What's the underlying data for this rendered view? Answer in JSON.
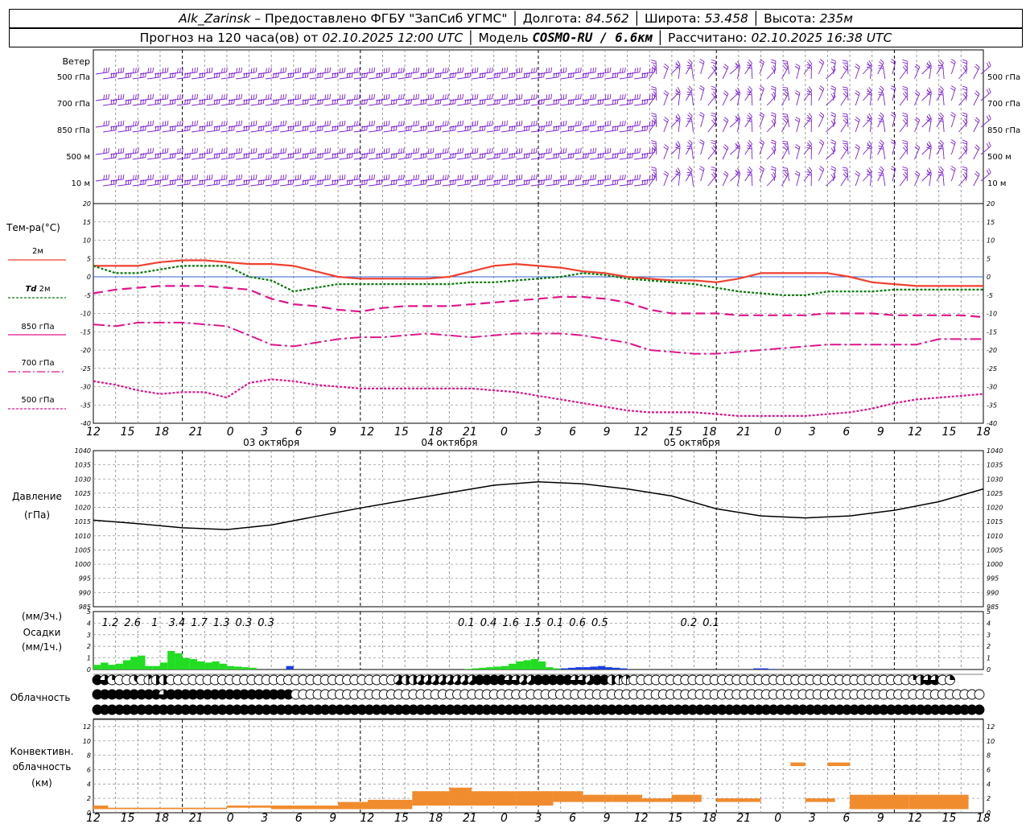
{
  "header": {
    "station": "Alk_Zarinsk",
    "provider": "– Предоставлено ФГБУ \"ЗапСиб УГМС\"",
    "lon_label": "Долгота:",
    "lon": "84.562",
    "lat_label": "Широта:",
    "lat": "53.458",
    "alt_label": "Высота:",
    "alt": "235м",
    "forecast_label": "Прогноз на 120 часа(ов) от",
    "start_time": "02.10.2025 12:00 UTC",
    "model_label": "Модель",
    "model": "COSMO-RU / 6.6км",
    "calc_label": "Рассчитано:",
    "calc_time": "02.10.2025 16:38 UTC"
  },
  "labels": {
    "wind": "Ветер",
    "wind_levels": [
      "500 гПа",
      "700 гПа",
      "850 гПа",
      "500 м",
      "10  м"
    ],
    "temp_title": "Тем-ра(°C)",
    "t2m": "2м",
    "td": "Td",
    "td_level": "2м",
    "t850": "850 гПа",
    "t700": "700 гПа",
    "t500": "500 гПа",
    "pressure": "Давление",
    "pressure_unit": "(гПа)",
    "precip_unit3": "(мм/3ч.)",
    "precip": "Осадки",
    "precip_unit1": "(мм/1ч.)",
    "cloud": "Облачность",
    "conv1": "Конвективн.",
    "conv2": "облачность",
    "conv3": "(км)"
  },
  "colors": {
    "wind": "#7b1fd6",
    "t2m": "#f04030",
    "td": "#0a7a0a",
    "t850": "#e0148c",
    "t700": "#e0148c",
    "t500": "#e0148c",
    "pressure": "#000000",
    "precip_rain": "#22dd22",
    "precip_snow": "#1a3fe0",
    "conv": "#f08c2e",
    "grid": "#9a9a9a"
  },
  "time_axis": {
    "hours": [
      "12",
      "15",
      "18",
      "21",
      "0",
      "3",
      "6",
      "9",
      "12",
      "15",
      "18",
      "21",
      "0",
      "3",
      "6",
      "9",
      "12",
      "15",
      "18",
      "21",
      "0",
      "3",
      "6",
      "9",
      "12",
      "15",
      "18"
    ],
    "days": [
      "03 октября",
      "04 октября",
      "05 октября"
    ]
  },
  "chart_data": [
    {
      "type": "line",
      "title": "Тем-ра(°C)",
      "x_hours": [
        0,
        3,
        6,
        9,
        12,
        15,
        18,
        21,
        24,
        27,
        30,
        33,
        36,
        39,
        42,
        45,
        48,
        51,
        54,
        57,
        60,
        63,
        66,
        69,
        72,
        75,
        78,
        81,
        84,
        87,
        90,
        93,
        96,
        99,
        102,
        105,
        108,
        111,
        114,
        117,
        120
      ],
      "yticks": [
        20,
        15,
        10,
        5,
        0,
        -5,
        -10,
        -15,
        -20,
        -25,
        -30,
        -35,
        -40
      ],
      "ylim": [
        -40,
        20
      ],
      "series": [
        {
          "name": "2м",
          "values": [
            3,
            3,
            3,
            4,
            4.5,
            4.5,
            4,
            3.5,
            3.5,
            3,
            1.5,
            0,
            -0.5,
            -0.5,
            -0.5,
            -0.5,
            0,
            1.5,
            3,
            3.5,
            3,
            2.5,
            1.5,
            1,
            0,
            -0.5,
            -1,
            -1,
            -1.5,
            -0.5,
            1,
            1,
            1,
            1,
            0,
            -1.5,
            -2,
            -2.5,
            -2.5,
            -2.5,
            -2.5
          ]
        },
        {
          "name": "Td 2м",
          "values": [
            3,
            1,
            1,
            2,
            3,
            3,
            3,
            0,
            -1,
            -4,
            -3,
            -2,
            -2,
            -2,
            -2,
            -2,
            -2,
            -1.5,
            -1.5,
            -1,
            -0.5,
            0,
            1,
            0.5,
            -0.5,
            -1,
            -1.5,
            -2,
            -3,
            -4,
            -4.5,
            -5,
            -5,
            -4,
            -4,
            -4,
            -3.5,
            -3.5,
            -3.5,
            -3.5,
            -3.5
          ]
        },
        {
          "name": "850 гПа",
          "values": [
            -4.5,
            -3.5,
            -3,
            -2.5,
            -2.5,
            -2.5,
            -3,
            -3.5,
            -6,
            -7.5,
            -8,
            -9,
            -9.5,
            -8.5,
            -8,
            -8,
            -8,
            -7.5,
            -7,
            -6.5,
            -6,
            -5.5,
            -5.5,
            -6,
            -7,
            -9,
            -10,
            -10,
            -10,
            -10.5,
            -10.5,
            -10.5,
            -10.5,
            -10,
            -10,
            -10,
            -10.5,
            -10.5,
            -10.5,
            -10.5,
            -11
          ]
        },
        {
          "name": "700 гПа",
          "values": [
            -13,
            -13.5,
            -12.5,
            -12.5,
            -12.5,
            -13,
            -13.5,
            -16,
            -18.5,
            -19,
            -18,
            -17,
            -16.5,
            -16.5,
            -16,
            -15.5,
            -16,
            -16.5,
            -16,
            -15.5,
            -15.5,
            -15.5,
            -16,
            -17,
            -18,
            -20,
            -20.5,
            -21,
            -21,
            -20.5,
            -20,
            -19.5,
            -19,
            -18.5,
            -18.5,
            -18.5,
            -18.5,
            -18.5,
            -17,
            -17,
            -17
          ]
        },
        {
          "name": "500 гПа",
          "values": [
            -28.5,
            -29.5,
            -31,
            -32,
            -31.5,
            -31.5,
            -33,
            -29,
            -28,
            -28.5,
            -29.5,
            -30,
            -30.5,
            -30.5,
            -30.5,
            -30.5,
            -30.5,
            -30.5,
            -31,
            -31.5,
            -32.5,
            -33.5,
            -34.5,
            -35.5,
            -36.5,
            -37,
            -37,
            -37,
            -37.5,
            -38,
            -38,
            -38,
            -38,
            -37.5,
            -37,
            -36,
            -34.5,
            -33.5,
            -33,
            -32.5,
            -32
          ]
        }
      ]
    },
    {
      "type": "line",
      "title": "Давление",
      "ylabel": "(гПа)",
      "x_hours": [
        0,
        6,
        12,
        18,
        24,
        30,
        36,
        42,
        48,
        54,
        60,
        66,
        72,
        78,
        84,
        90,
        96,
        102,
        108,
        114,
        120
      ],
      "yticks": [
        1040,
        1035,
        1030,
        1025,
        1020,
        1015,
        1010,
        1005,
        1000,
        995,
        990,
        985
      ],
      "ylim": [
        985,
        1040
      ],
      "series": [
        {
          "name": "Давление",
          "values": [
            1015.5,
            1014.3,
            1012.8,
            1012.2,
            1013.8,
            1016.8,
            1019.8,
            1022.5,
            1025.2,
            1027.8,
            1029.0,
            1028.3,
            1026.5,
            1024.0,
            1019.5,
            1017.0,
            1016.3,
            1017.0,
            1019.0,
            1022.0,
            1026.5
          ]
        }
      ]
    },
    {
      "type": "bar",
      "title": "Осадки",
      "x_hours": [
        0,
        3,
        6,
        9,
        12,
        15,
        18,
        21,
        24,
        27,
        30,
        33,
        36,
        39,
        42,
        45,
        48,
        51,
        54,
        57,
        60,
        63,
        66,
        69,
        72,
        75,
        78,
        81,
        84,
        87,
        90,
        93,
        96,
        99,
        102,
        105,
        108,
        111,
        114,
        117
      ],
      "labels_3h": [
        "1.2",
        "2.6",
        "1",
        "3.4",
        "1.7",
        "1.3",
        "0.3",
        "0.3",
        "",
        "",
        "",
        "",
        "",
        "",
        "",
        "",
        "0.1",
        "0.4",
        "1.6",
        "1.5",
        "0.1",
        "0.6",
        "0.5",
        "",
        "",
        "",
        "0.2",
        "0.1",
        "",
        "",
        "",
        "",
        "",
        "",
        "",
        "",
        "",
        "",
        "",
        ""
      ],
      "yticks": [
        5,
        4,
        3,
        2,
        1,
        0
      ],
      "ylim": [
        0,
        5
      ],
      "hourly_rain_mm": [
        0.4,
        0.6,
        0.4,
        0.5,
        0.8,
        1.1,
        1.2,
        0.3,
        0.3,
        0.6,
        1.6,
        1.4,
        1.0,
        0.9,
        0.7,
        0.6,
        0.7,
        0.5,
        0.3,
        0.25,
        0.2,
        0.15,
        0,
        0,
        0,
        0,
        0,
        0,
        0,
        0,
        0,
        0,
        0,
        0,
        0,
        0,
        0,
        0,
        0,
        0,
        0,
        0,
        0,
        0,
        0,
        0,
        0,
        0,
        0,
        0,
        0.05,
        0.1,
        0.15,
        0.2,
        0.25,
        0.3,
        0.5,
        0.7,
        0.8,
        0.9,
        0.7,
        0.2,
        0.1,
        0.05,
        0,
        0,
        0,
        0,
        0,
        0,
        0,
        0,
        0,
        0,
        0,
        0,
        0,
        0,
        0,
        0,
        0,
        0,
        0,
        0,
        0,
        0,
        0,
        0,
        0,
        0,
        0,
        0,
        0,
        0,
        0,
        0,
        0,
        0,
        0,
        0,
        0,
        0,
        0,
        0,
        0,
        0,
        0,
        0,
        0,
        0,
        0,
        0,
        0,
        0,
        0,
        0,
        0,
        0,
        0,
        0,
        0,
        0,
        0,
        0,
        0,
        0,
        0,
        0
      ],
      "hourly_snow_mm": [
        0,
        0,
        0,
        0,
        0,
        0,
        0,
        0,
        0,
        0,
        0,
        0,
        0,
        0,
        0,
        0,
        0,
        0,
        0,
        0,
        0,
        0,
        0,
        0,
        0,
        0,
        0.3,
        0,
        0,
        0,
        0,
        0,
        0,
        0,
        0,
        0,
        0,
        0,
        0,
        0,
        0,
        0,
        0,
        0,
        0,
        0,
        0,
        0,
        0,
        0,
        0,
        0,
        0,
        0,
        0,
        0,
        0,
        0,
        0,
        0,
        0,
        0,
        0,
        0.1,
        0.15,
        0.2,
        0.2,
        0.25,
        0.3,
        0.2,
        0.15,
        0.1,
        0,
        0,
        0,
        0,
        0,
        0,
        0,
        0,
        0,
        0,
        0,
        0,
        0,
        0,
        0,
        0,
        0,
        0.1,
        0.1,
        0.05,
        0,
        0,
        0,
        0,
        0,
        0,
        0,
        0,
        0,
        0,
        0,
        0,
        0,
        0,
        0,
        0,
        0,
        0,
        0,
        0,
        0,
        0,
        0,
        0,
        0,
        0,
        0,
        0,
        0,
        0,
        0,
        0,
        0,
        0,
        0,
        0,
        0,
        0
      ]
    },
    {
      "type": "table",
      "title": "Облачность",
      "rows_oktas_high_mid_low": [
        [
          8,
          6,
          2,
          0,
          0,
          3,
          0,
          1,
          4,
          4,
          0,
          0,
          0,
          0,
          0,
          0,
          0,
          0,
          0,
          0,
          0,
          0,
          0,
          0,
          0,
          0,
          0,
          0,
          0,
          0,
          0,
          0,
          0,
          0,
          0,
          0,
          0,
          0,
          0,
          0,
          0,
          5,
          4,
          4,
          5,
          5,
          5,
          5,
          5,
          5,
          5,
          5,
          8,
          8,
          8,
          8,
          6,
          6,
          5,
          5,
          8,
          8,
          8,
          8,
          8,
          6,
          6,
          5,
          8,
          8,
          4,
          1,
          1,
          0,
          0,
          0,
          0,
          0,
          0,
          0,
          0,
          0,
          0,
          0,
          0,
          0,
          0,
          0,
          0,
          0,
          0,
          0,
          0,
          0,
          0,
          0,
          0,
          0,
          0,
          0,
          0,
          0,
          0,
          0,
          0,
          0,
          0,
          0,
          0,
          0,
          0,
          2,
          4,
          6,
          6,
          0,
          2
        ],
        [
          8,
          8,
          8,
          8,
          8,
          8,
          8,
          8,
          8,
          6,
          8,
          8,
          8,
          8,
          8,
          8,
          8,
          8,
          8,
          8,
          8,
          8,
          8,
          8,
          8,
          8,
          8,
          0,
          0,
          0,
          0,
          0,
          0,
          0,
          0,
          0,
          0,
          0,
          0,
          0,
          0,
          0,
          0,
          0,
          0,
          0,
          0,
          0,
          0,
          0,
          0,
          0,
          0,
          0,
          0,
          0,
          0,
          0,
          0,
          0,
          0,
          0,
          0,
          0,
          0,
          0,
          0,
          0,
          0,
          0,
          0,
          0,
          0,
          0,
          0,
          0,
          0,
          0,
          0,
          0,
          0,
          0,
          0,
          0,
          0,
          0,
          0,
          0,
          0,
          0,
          0,
          0,
          0,
          0,
          0,
          0,
          0,
          0,
          0,
          0,
          0,
          0,
          0,
          0,
          0,
          0,
          0,
          0,
          0,
          0,
          0,
          0,
          0,
          0,
          0,
          0,
          0,
          0,
          0,
          0,
          0
        ],
        [
          8,
          8,
          8,
          8,
          8,
          8,
          8,
          8,
          8,
          8,
          8,
          8,
          8,
          8,
          8,
          8,
          8,
          8,
          8,
          8,
          8,
          8,
          8,
          8,
          8,
          8,
          8,
          8,
          8,
          8,
          8,
          8,
          8,
          8,
          8,
          8,
          8,
          8,
          8,
          8,
          8,
          8,
          8,
          8,
          8,
          8,
          8,
          8,
          8,
          8,
          8,
          8,
          8,
          8,
          8,
          8,
          8,
          8,
          8,
          8,
          8,
          8,
          8,
          8,
          8,
          8,
          8,
          8,
          8,
          8,
          8,
          8,
          8,
          8,
          8,
          8,
          8,
          8,
          8,
          8,
          8,
          8,
          8,
          8,
          8,
          8,
          8,
          8,
          8,
          8,
          8,
          8,
          8,
          8,
          8,
          8,
          8,
          8,
          8,
          8,
          8,
          8,
          8,
          8,
          8,
          8,
          8,
          8,
          8,
          8,
          8,
          8,
          8,
          8,
          8,
          8,
          8,
          8,
          8,
          8,
          8
        ]
      ]
    },
    {
      "type": "bar",
      "title": "Конвективн. облачность",
      "ylabel": "(км)",
      "yticks": [
        12,
        10,
        8,
        6,
        4,
        2,
        0
      ],
      "ylim": [
        0,
        13
      ],
      "blocks_hours_base_top_km": [
        [
          0,
          2,
          0.5,
          1
        ],
        [
          2,
          6,
          0.5,
          0.7
        ],
        [
          6,
          12,
          0.5,
          0.7
        ],
        [
          12,
          18,
          0.5,
          0.7
        ],
        [
          18,
          24,
          0.7,
          1
        ],
        [
          24,
          27,
          0.5,
          1
        ],
        [
          27,
          33,
          0.5,
          1
        ],
        [
          33,
          37,
          0.5,
          1.5
        ],
        [
          37,
          43,
          0.5,
          1.8
        ],
        [
          43,
          48,
          1,
          3
        ],
        [
          48,
          51,
          1,
          3.5
        ],
        [
          51,
          57,
          1,
          3
        ],
        [
          57,
          62,
          1,
          3
        ],
        [
          62,
          66,
          1.5,
          3
        ],
        [
          66,
          70,
          1.5,
          2.5
        ],
        [
          70,
          74,
          1.5,
          2.5
        ],
        [
          74,
          78,
          1.5,
          2
        ],
        [
          78,
          82,
          1.5,
          2.5
        ],
        [
          84,
          90,
          1.5,
          2
        ],
        [
          94,
          96,
          6.5,
          7
        ],
        [
          96,
          100,
          1.5,
          2
        ],
        [
          99,
          102,
          6.5,
          7
        ],
        [
          102,
          110,
          0.5,
          2.5
        ],
        [
          110,
          118,
          0.5,
          2.5
        ]
      ]
    }
  ]
}
